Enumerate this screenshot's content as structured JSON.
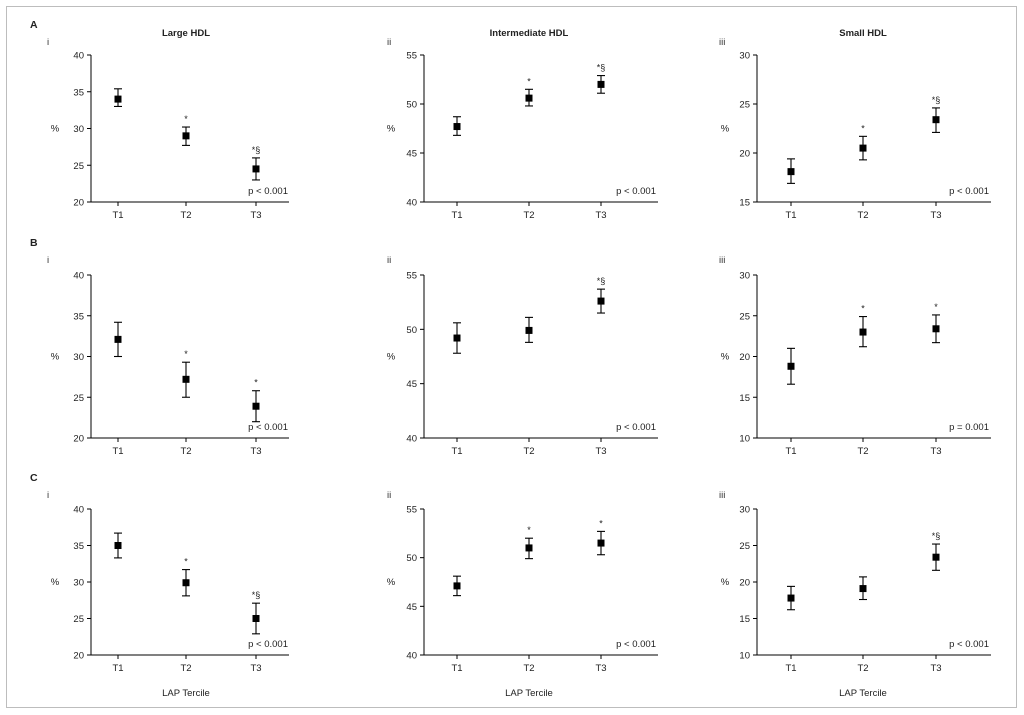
{
  "row_labels": [
    "A",
    "B",
    "C"
  ],
  "panel_numerals": [
    "i",
    "ii",
    "iii"
  ],
  "column_titles": [
    "Large HDL",
    "Intermediate HDL",
    "Small HDL"
  ],
  "x_axis_title": "LAP Tercile",
  "y_axis_label": "%",
  "chart_data": [
    {
      "type": "scatter",
      "row": "A",
      "panel": "i",
      "categories": [
        "T1",
        "T2",
        "T3"
      ],
      "ylim": [
        20,
        40
      ],
      "yticks": [
        20,
        25,
        30,
        35,
        40
      ],
      "values": [
        34,
        29,
        24.5
      ],
      "err_low": [
        33,
        27.7,
        23
      ],
      "err_high": [
        35.4,
        30.2,
        26
      ],
      "annotations": [
        "",
        "*",
        "*§"
      ],
      "pvalue": "p < 0.001"
    },
    {
      "type": "scatter",
      "row": "A",
      "panel": "ii",
      "categories": [
        "T1",
        "T2",
        "T3"
      ],
      "ylim": [
        40,
        55
      ],
      "yticks": [
        40,
        45,
        50,
        55
      ],
      "values": [
        47.7,
        50.6,
        52
      ],
      "err_low": [
        46.8,
        49.8,
        51.1
      ],
      "err_high": [
        48.7,
        51.5,
        52.9
      ],
      "annotations": [
        "",
        "*",
        "*§"
      ],
      "pvalue": "p < 0.001"
    },
    {
      "type": "scatter",
      "row": "A",
      "panel": "iii",
      "categories": [
        "T1",
        "T2",
        "T3"
      ],
      "ylim": [
        15,
        30
      ],
      "yticks": [
        15,
        20,
        25,
        30
      ],
      "values": [
        18.1,
        20.5,
        23.4
      ],
      "err_low": [
        16.9,
        19.3,
        22.1
      ],
      "err_high": [
        19.4,
        21.7,
        24.6
      ],
      "annotations": [
        "",
        "*",
        "*§"
      ],
      "pvalue": "p < 0.001"
    },
    {
      "type": "scatter",
      "row": "B",
      "panel": "i",
      "categories": [
        "T1",
        "T2",
        "T3"
      ],
      "ylim": [
        20,
        40
      ],
      "yticks": [
        20,
        25,
        30,
        35,
        40
      ],
      "values": [
        32.1,
        27.2,
        23.9
      ],
      "err_low": [
        30,
        25,
        22
      ],
      "err_high": [
        34.2,
        29.3,
        25.8
      ],
      "annotations": [
        "",
        "*",
        "*"
      ],
      "pvalue": "p < 0.001"
    },
    {
      "type": "scatter",
      "row": "B",
      "panel": "ii",
      "categories": [
        "T1",
        "T2",
        "T3"
      ],
      "ylim": [
        40,
        55
      ],
      "yticks": [
        40,
        45,
        50,
        55
      ],
      "values": [
        49.2,
        49.9,
        52.6
      ],
      "err_low": [
        47.8,
        48.8,
        51.5
      ],
      "err_high": [
        50.6,
        51.1,
        53.7
      ],
      "annotations": [
        "",
        "",
        "*§"
      ],
      "pvalue": "p < 0.001"
    },
    {
      "type": "scatter",
      "row": "B",
      "panel": "iii",
      "categories": [
        "T1",
        "T2",
        "T3"
      ],
      "ylim": [
        10,
        30
      ],
      "yticks": [
        10,
        15,
        20,
        25,
        30
      ],
      "values": [
        18.8,
        23,
        23.4
      ],
      "err_low": [
        16.6,
        21.2,
        21.7
      ],
      "err_high": [
        21,
        24.9,
        25.1
      ],
      "annotations": [
        "",
        "*",
        "*"
      ],
      "pvalue": "p = 0.001"
    },
    {
      "type": "scatter",
      "row": "C",
      "panel": "i",
      "categories": [
        "T1",
        "T2",
        "T3"
      ],
      "ylim": [
        20,
        40
      ],
      "yticks": [
        20,
        25,
        30,
        35,
        40
      ],
      "values": [
        35,
        29.9,
        25
      ],
      "err_low": [
        33.3,
        28.1,
        22.9
      ],
      "err_high": [
        36.7,
        31.7,
        27.1
      ],
      "annotations": [
        "",
        "*",
        "*§"
      ],
      "pvalue": "p < 0.001"
    },
    {
      "type": "scatter",
      "row": "C",
      "panel": "ii",
      "categories": [
        "T1",
        "T2",
        "T3"
      ],
      "ylim": [
        40,
        55
      ],
      "yticks": [
        40,
        45,
        50,
        55
      ],
      "values": [
        47.1,
        51,
        51.5
      ],
      "err_low": [
        46.1,
        49.9,
        50.3
      ],
      "err_high": [
        48.1,
        52,
        52.7
      ],
      "annotations": [
        "",
        "*",
        "*"
      ],
      "pvalue": "p < 0.001"
    },
    {
      "type": "scatter",
      "row": "C",
      "panel": "iii",
      "categories": [
        "T1",
        "T2",
        "T3"
      ],
      "ylim": [
        10,
        30
      ],
      "yticks": [
        10,
        15,
        20,
        25,
        30
      ],
      "values": [
        17.8,
        19.1,
        23.4
      ],
      "err_low": [
        16.2,
        17.6,
        21.6
      ],
      "err_high": [
        19.4,
        20.7,
        25.2
      ],
      "annotations": [
        "",
        "",
        "*§"
      ],
      "pvalue": "p < 0.001"
    }
  ]
}
